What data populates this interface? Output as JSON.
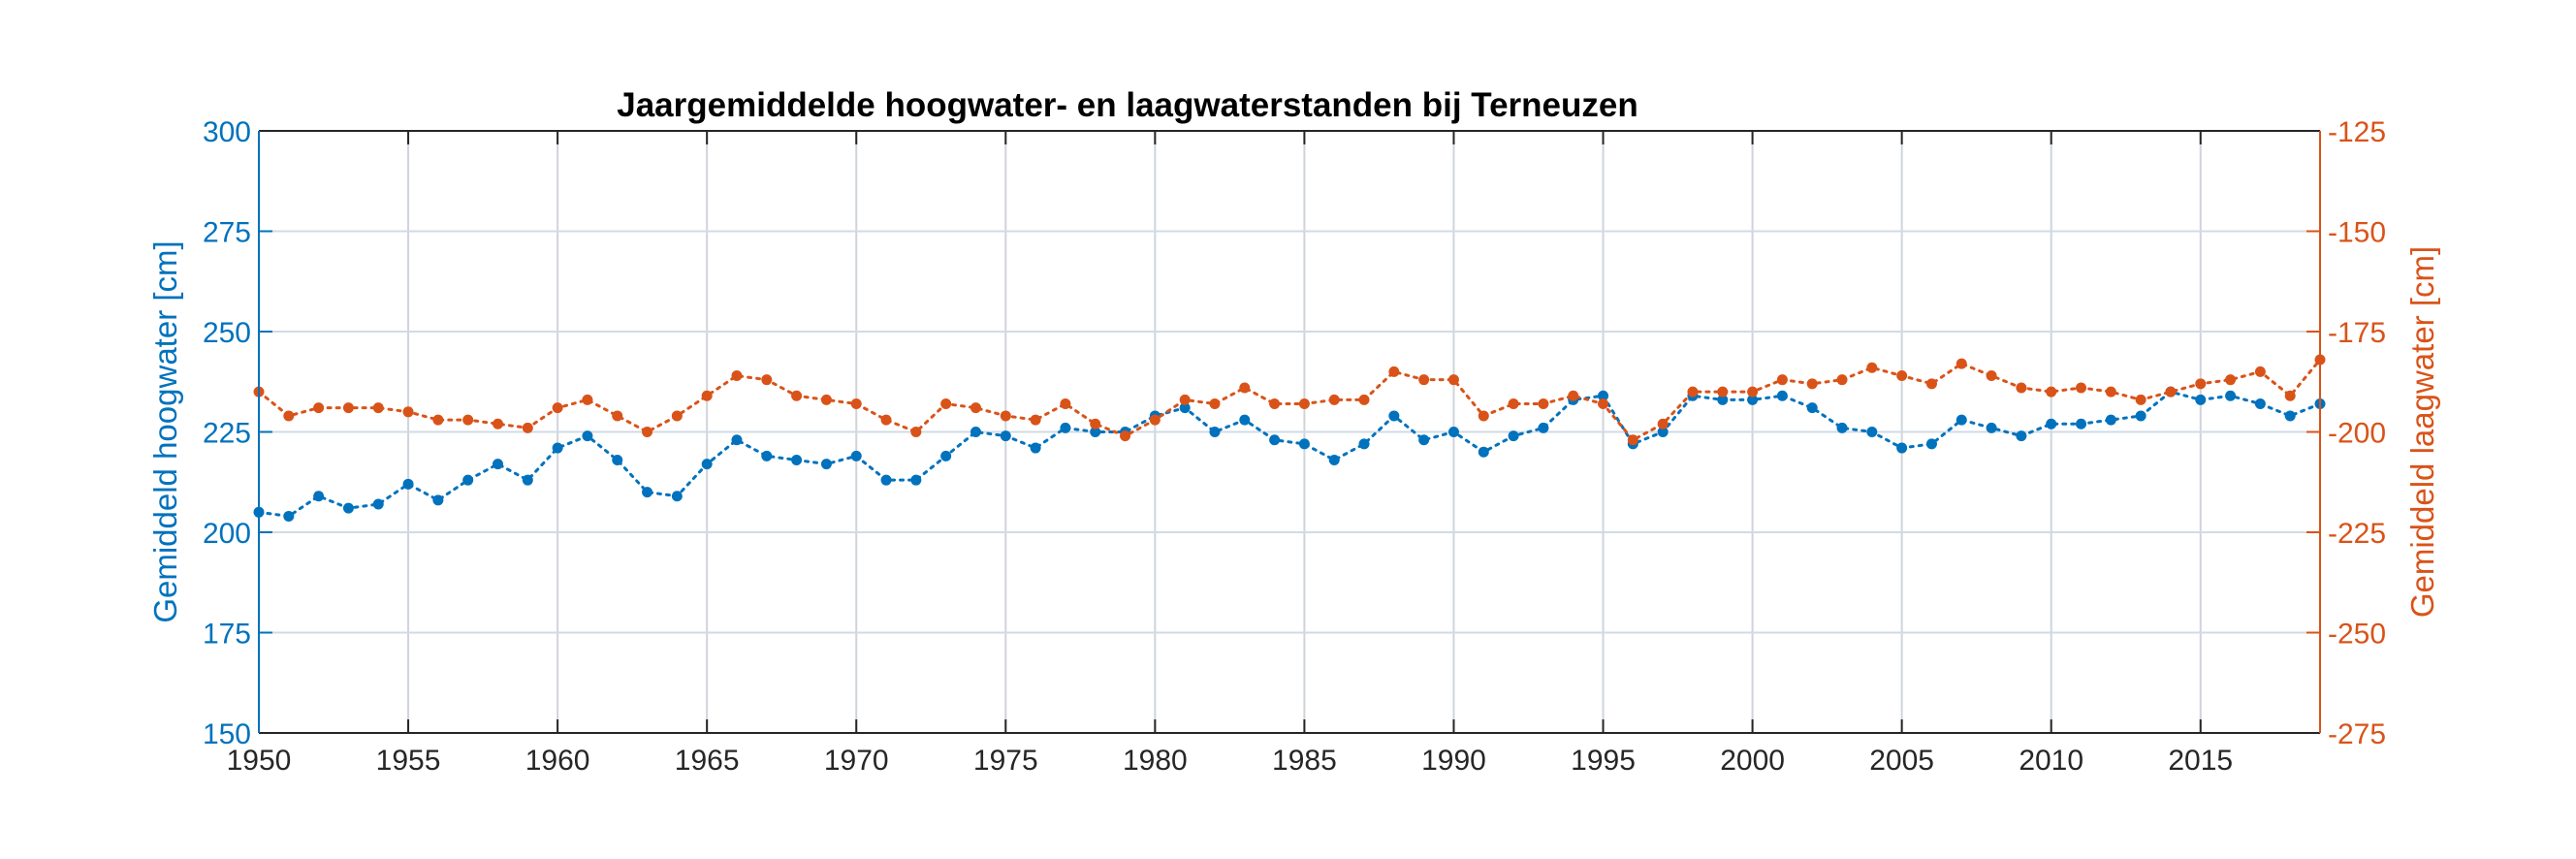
{
  "chart_data": {
    "type": "line",
    "title": "Jaargemiddelde hoogwater- en laagwaterstanden bij Terneuzen",
    "xlabel": "",
    "x_ticks": [
      "1950",
      "1955",
      "1960",
      "1965",
      "1970",
      "1975",
      "1980",
      "1985",
      "1990",
      "1995",
      "2000",
      "2005",
      "2010",
      "2015"
    ],
    "xlim": [
      1950,
      2019
    ],
    "grid": true,
    "legend": "none",
    "left_axis": {
      "label": "Gemiddeld hoogwater [cm]",
      "ylim": [
        150,
        300
      ],
      "ticks": [
        "150",
        "175",
        "200",
        "225",
        "250",
        "275",
        "300"
      ],
      "color": "#0072bd"
    },
    "right_axis": {
      "label": "Gemiddeld laagwater [cm]",
      "ylim": [
        -275,
        -125
      ],
      "ticks": [
        "-275",
        "-250",
        "-225",
        "-200",
        "-175",
        "-150",
        "-125"
      ],
      "color": "#d95319"
    },
    "x": [
      1950,
      1951,
      1952,
      1953,
      1954,
      1955,
      1956,
      1957,
      1958,
      1959,
      1960,
      1961,
      1962,
      1963,
      1964,
      1965,
      1966,
      1967,
      1968,
      1969,
      1970,
      1971,
      1972,
      1973,
      1974,
      1975,
      1976,
      1977,
      1978,
      1979,
      1980,
      1981,
      1982,
      1983,
      1984,
      1985,
      1986,
      1987,
      1988,
      1989,
      1990,
      1991,
      1992,
      1993,
      1994,
      1995,
      1996,
      1997,
      1998,
      1999,
      2000,
      2001,
      2002,
      2003,
      2004,
      2005,
      2006,
      2007,
      2008,
      2009,
      2010,
      2011,
      2012,
      2013,
      2014,
      2015,
      2016,
      2017,
      2018,
      2019
    ],
    "series": [
      {
        "axis": "left",
        "color": "#0072bd",
        "values": [
          205,
          204,
          209,
          206,
          207,
          212,
          208,
          213,
          217,
          213,
          221,
          224,
          218,
          210,
          209,
          217,
          223,
          219,
          218,
          217,
          219,
          213,
          213,
          219,
          225,
          224,
          221,
          226,
          225,
          225,
          229,
          231,
          225,
          228,
          223,
          222,
          218,
          222,
          229,
          223,
          225,
          220,
          224,
          226,
          233,
          234,
          222,
          225,
          234,
          233,
          233,
          234,
          231,
          226,
          225,
          221,
          222,
          228,
          226,
          224,
          227,
          227,
          228,
          229,
          235,
          233,
          234,
          232,
          229,
          232
        ],
        "marker": "dot",
        "linestyle": "dotted"
      },
      {
        "axis": "right",
        "color": "#d95319",
        "values": [
          -190,
          -196,
          -194,
          -194,
          -194,
          -195,
          -197,
          -197,
          -198,
          -199,
          -194,
          -192,
          -196,
          -200,
          -196,
          -191,
          -186,
          -187,
          -191,
          -192,
          -193,
          -197,
          -200,
          -193,
          -194,
          -196,
          -197,
          -193,
          -198,
          -201,
          -197,
          -192,
          -193,
          -189,
          -193,
          -193,
          -192,
          -192,
          -185,
          -187,
          -187,
          -196,
          -193,
          -193,
          -191,
          -193,
          -202,
          -198,
          -190,
          -190,
          -190,
          -187,
          -188,
          -187,
          -184,
          -186,
          -188,
          -183,
          -186,
          -189,
          -190,
          -189,
          -190,
          -192,
          -190,
          -188,
          -187,
          -185,
          -191,
          -182
        ],
        "marker": "dot",
        "linestyle": "dotted"
      }
    ]
  }
}
